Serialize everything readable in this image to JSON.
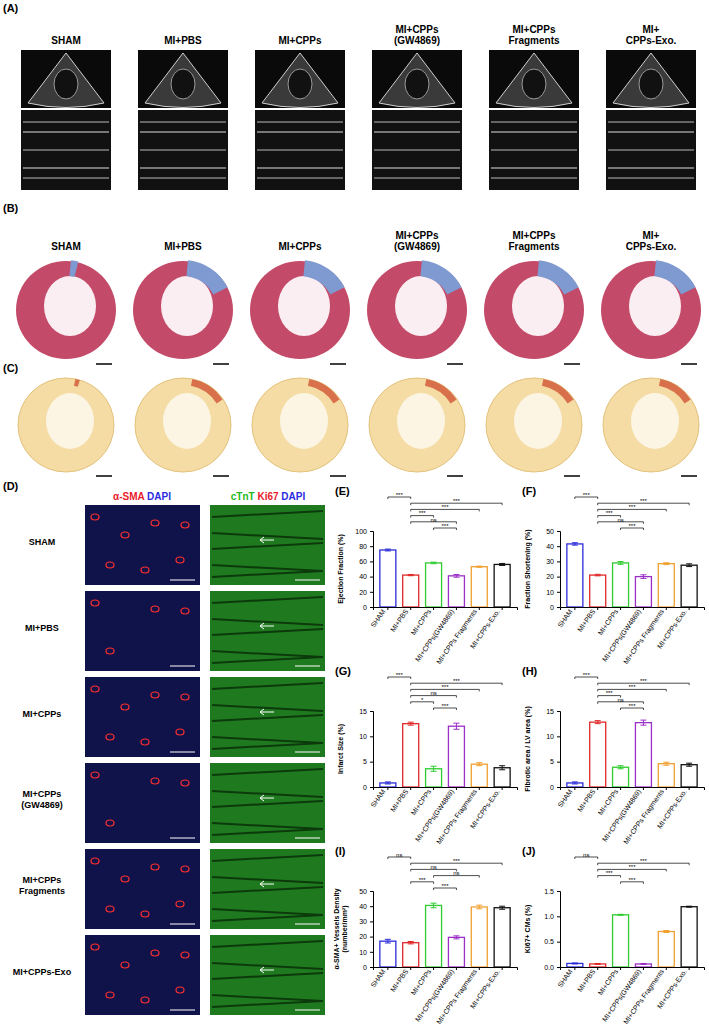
{
  "panels": {
    "A": {
      "label": "(A)",
      "groups": [
        [
          "SHAM"
        ],
        [
          "MI+PBS"
        ],
        [
          "MI+CPPs"
        ],
        [
          "MI+CPPs",
          "(GW4869)"
        ],
        [
          "MI+CPPs",
          "Fragments"
        ],
        [
          "MI+",
          "CPPs-Exo."
        ]
      ]
    },
    "B": {
      "label": "(B)",
      "groups": [
        [
          "SHAM"
        ],
        [
          "MI+PBS"
        ],
        [
          "MI+CPPs"
        ],
        [
          "MI+CPPs",
          "(GW4869)"
        ],
        [
          "MI+CPPs",
          "Fragments"
        ],
        [
          "MI+",
          "CPPs-Exo."
        ]
      ]
    },
    "C": {
      "label": "(C)"
    },
    "D": {
      "label": "(D)",
      "headers": [
        [
          {
            "text": "α-SMA",
            "color": "#e8202a"
          },
          {
            "text": "DAPI",
            "color": "#2a2ae0"
          }
        ],
        [
          {
            "text": "cTnT",
            "color": "#22b822"
          },
          {
            "text": "Ki67",
            "color": "#e8202a"
          },
          {
            "text": "DAPI",
            "color": "#2a2ae0"
          }
        ]
      ],
      "rows": [
        [
          "SHAM"
        ],
        [
          "MI+PBS"
        ],
        [
          "MI+CPPs"
        ],
        [
          "MI+CPPs",
          "(GW4869)"
        ],
        [
          "MI+CPPs",
          "Fragments"
        ],
        [
          "MI+CPPs-Exo"
        ]
      ]
    }
  },
  "chart_data": [
    {
      "type": "bar",
      "title": "(E)",
      "ylabel": [
        "Ejection Fraction (%)"
      ],
      "categories": [
        "SHAM",
        "MI+PBS",
        "MI+CPPs",
        "MI+CPPs(GW4869)",
        "MI+CPPs Fragments",
        "MI+CPPs-Exo."
      ],
      "values": [
        75,
        42,
        58,
        41,
        53,
        56
      ],
      "errors": [
        1.2,
        0.8,
        1.0,
        1.8,
        0.8,
        1.3
      ],
      "colors": [
        "#2b2bd9",
        "#e02828",
        "#2ecc2e",
        "#9b30c8",
        "#f0a030",
        "#111111"
      ],
      "ylim": [
        0,
        100
      ],
      "yticks": [
        0,
        20,
        40,
        60,
        80,
        100
      ],
      "annotations": [
        {
          "from": 0,
          "to": 1,
          "label": "***"
        },
        {
          "from": 1,
          "to": 5,
          "label": "***"
        },
        {
          "from": 1,
          "to": 4,
          "label": "***"
        },
        {
          "from": 1,
          "to": 2,
          "label": "***"
        },
        {
          "from": 1,
          "to": 3,
          "label": "ns"
        },
        {
          "from": 2,
          "to": 3,
          "label": "***"
        }
      ]
    },
    {
      "type": "bar",
      "title": "(F)",
      "ylabel": [
        "Fraction Shortening (%)"
      ],
      "categories": [
        "SHAM",
        "MI+PBS",
        "MI+CPPs",
        "MI+CPPs(GW4869)",
        "MI+CPPs Fragments",
        "MI+CPPs-Exo."
      ],
      "values": [
        41.5,
        21,
        29,
        20,
        28.5,
        27.5
      ],
      "errors": [
        0.8,
        0.5,
        0.9,
        1.2,
        0.6,
        0.9
      ],
      "colors": [
        "#2b2bd9",
        "#e02828",
        "#2ecc2e",
        "#9b30c8",
        "#f0a030",
        "#111111"
      ],
      "ylim": [
        0,
        50
      ],
      "yticks": [
        0,
        10,
        20,
        30,
        40,
        50
      ],
      "annotations": [
        {
          "from": 0,
          "to": 1,
          "label": "***"
        },
        {
          "from": 1,
          "to": 5,
          "label": "***"
        },
        {
          "from": 1,
          "to": 4,
          "label": "***"
        },
        {
          "from": 1,
          "to": 2,
          "label": "***"
        },
        {
          "from": 1,
          "to": 3,
          "label": "ns"
        },
        {
          "from": 2,
          "to": 3,
          "label": "***"
        }
      ]
    },
    {
      "type": "bar",
      "title": "(G)",
      "ylabel": [
        "Infarct Size (%)"
      ],
      "categories": [
        "SHAM",
        "MI+PBS",
        "MI+CPPs",
        "MI+CPPs(GW4869)",
        "MI+CPPs Fragments",
        "MI+CPPs-Exo."
      ],
      "values": [
        0.8,
        12.5,
        3.6,
        12.0,
        4.5,
        3.8
      ],
      "errors": [
        0.2,
        0.3,
        0.5,
        0.6,
        0.3,
        0.4
      ],
      "colors": [
        "#2b2bd9",
        "#e02828",
        "#2ecc2e",
        "#9b30c8",
        "#f0a030",
        "#111111"
      ],
      "ylim": [
        0,
        15
      ],
      "yticks": [
        0,
        5,
        10,
        15
      ],
      "annotations": [
        {
          "from": 0,
          "to": 1,
          "label": "***"
        },
        {
          "from": 1,
          "to": 5,
          "label": "***"
        },
        {
          "from": 1,
          "to": 4,
          "label": "***"
        },
        {
          "from": 1,
          "to": 3,
          "label": "ns"
        },
        {
          "from": 1,
          "to": 2,
          "label": "*"
        },
        {
          "from": 2,
          "to": 3,
          "label": "***"
        }
      ]
    },
    {
      "type": "bar",
      "title": "(H)",
      "ylabel": [
        "Fibrotic area / LV area (%)"
      ],
      "categories": [
        "SHAM",
        "MI+PBS",
        "MI+CPPs",
        "MI+CPPs(GW4869)",
        "MI+CPPs Fragments",
        "MI+CPPs-Exo."
      ],
      "values": [
        0.8,
        12.8,
        3.9,
        12.7,
        4.6,
        4.4
      ],
      "errors": [
        0.2,
        0.3,
        0.3,
        0.5,
        0.3,
        0.3
      ],
      "colors": [
        "#2b2bd9",
        "#e02828",
        "#2ecc2e",
        "#9b30c8",
        "#f0a030",
        "#111111"
      ],
      "ylim": [
        0,
        15
      ],
      "yticks": [
        0,
        5,
        10,
        15
      ],
      "annotations": [
        {
          "from": 0,
          "to": 1,
          "label": "***"
        },
        {
          "from": 1,
          "to": 5,
          "label": "***"
        },
        {
          "from": 1,
          "to": 4,
          "label": "***"
        },
        {
          "from": 1,
          "to": 2,
          "label": "***"
        },
        {
          "from": 1,
          "to": 3,
          "label": "ns"
        },
        {
          "from": 2,
          "to": 3,
          "label": "***"
        }
      ]
    },
    {
      "type": "bar",
      "title": "(I)",
      "ylabel": [
        "α-SMA+ Vessels Density",
        "(number/mm²)"
      ],
      "categories": [
        "SHAM",
        "MI+PBS",
        "MI+CPPs",
        "MI+CPPs(GW4869)",
        "MI+CPPs Fragments",
        "MI+CPPs-Exo."
      ],
      "values": [
        17,
        16,
        40.5,
        19.5,
        39.5,
        39
      ],
      "errors": [
        1.2,
        0.8,
        1.5,
        1.0,
        1.2,
        1.0
      ],
      "colors": [
        "#2b2bd9",
        "#e02828",
        "#2ecc2e",
        "#9b30c8",
        "#f0a030",
        "#111111"
      ],
      "ylim": [
        0,
        50
      ],
      "yticks": [
        0,
        10,
        20,
        30,
        40,
        50
      ],
      "annotations": [
        {
          "from": 0,
          "to": 1,
          "label": "ns"
        },
        {
          "from": 1,
          "to": 5,
          "label": "***"
        },
        {
          "from": 1,
          "to": 3,
          "label": "ns"
        },
        {
          "from": 2,
          "to": 4,
          "label": "ns"
        },
        {
          "from": 1,
          "to": 2,
          "label": "***"
        },
        {
          "from": 2,
          "to": 3,
          "label": "***"
        }
      ]
    },
    {
      "type": "bar",
      "title": "(J)",
      "ylabel": [
        "Ki67+ CMs (%)"
      ],
      "categories": [
        "SHAM",
        "MI+PBS",
        "MI+CPPs",
        "MI+CPPs(GW4869)",
        "MI+CPPs Fragments",
        "MI+CPPs-Exo."
      ],
      "values": [
        0.07,
        0.06,
        1.03,
        0.06,
        0.7,
        1.19
      ],
      "errors": [
        0.01,
        0.01,
        0.01,
        0.01,
        0.02,
        0.01
      ],
      "colors": [
        "#2b2bd9",
        "#e02828",
        "#2ecc2e",
        "#9b30c8",
        "#f0a030",
        "#111111"
      ],
      "ylim": [
        0,
        1.5
      ],
      "yticks": [
        {
          "value": 0,
          "label": "0.0"
        },
        0.5,
        {
          "value": 1,
          "label": "1.0"
        },
        1.5
      ],
      "annotations": [
        {
          "from": 0,
          "to": 1,
          "label": "ns"
        },
        {
          "from": 1,
          "to": 5,
          "label": "***"
        },
        {
          "from": 1,
          "to": 4,
          "label": "***"
        },
        {
          "from": 1,
          "to": 2,
          "label": "***"
        },
        {
          "from": 2,
          "to": 3,
          "label": "***"
        }
      ]
    }
  ]
}
